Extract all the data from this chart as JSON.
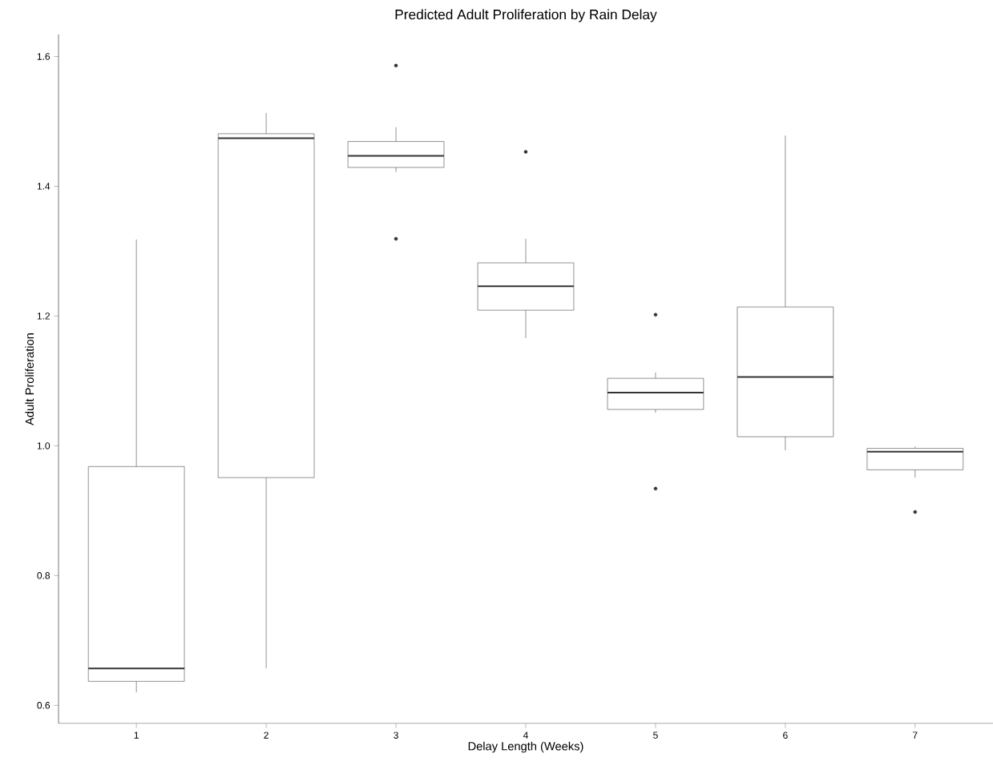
{
  "chart_data": {
    "type": "box",
    "title": "Predicted Adult Proliferation by Rain Delay",
    "xlabel": "Delay Length (Weeks)",
    "ylabel": "Adult Proliferation",
    "categories": [
      "1",
      "2",
      "3",
      "4",
      "5",
      "6",
      "7"
    ],
    "color": "#333333",
    "boxes": [
      {
        "low": 0.62,
        "q1": 0.637,
        "median": 0.657,
        "q3": 0.968,
        "high": 1.318
      },
      {
        "low": 0.657,
        "q1": 0.951,
        "median": 1.474,
        "q3": 1.481,
        "high": 1.513
      },
      {
        "low": 1.422,
        "q1": 1.429,
        "median": 1.447,
        "q3": 1.469,
        "high": 1.491,
        "outliers": [
          1.586,
          1.319
        ]
      },
      {
        "low": 1.166,
        "q1": 1.209,
        "median": 1.246,
        "q3": 1.282,
        "high": 1.319,
        "outliers": [
          1.453
        ]
      },
      {
        "low": 1.051,
        "q1": 1.056,
        "median": 1.082,
        "q3": 1.104,
        "high": 1.113,
        "outliers": [
          1.202,
          0.934
        ]
      },
      {
        "low": 0.993,
        "q1": 1.014,
        "median": 1.106,
        "q3": 1.214,
        "high": 1.478
      },
      {
        "low": 0.951,
        "q1": 0.963,
        "median": 0.991,
        "q3": 0.996,
        "high": 0.999,
        "outliers": [
          0.898
        ]
      }
    ],
    "ylim": [
      0.572,
      1.634
    ],
    "yticks": [
      {
        "value": 0.6,
        "label": "0.6"
      },
      {
        "value": 0.8,
        "label": "0.8"
      },
      {
        "value": 1.0,
        "label": "1.0"
      },
      {
        "value": 1.2,
        "label": "1.2"
      },
      {
        "value": 1.4,
        "label": "1.4"
      },
      {
        "value": 1.6,
        "label": "1.6"
      }
    ]
  }
}
